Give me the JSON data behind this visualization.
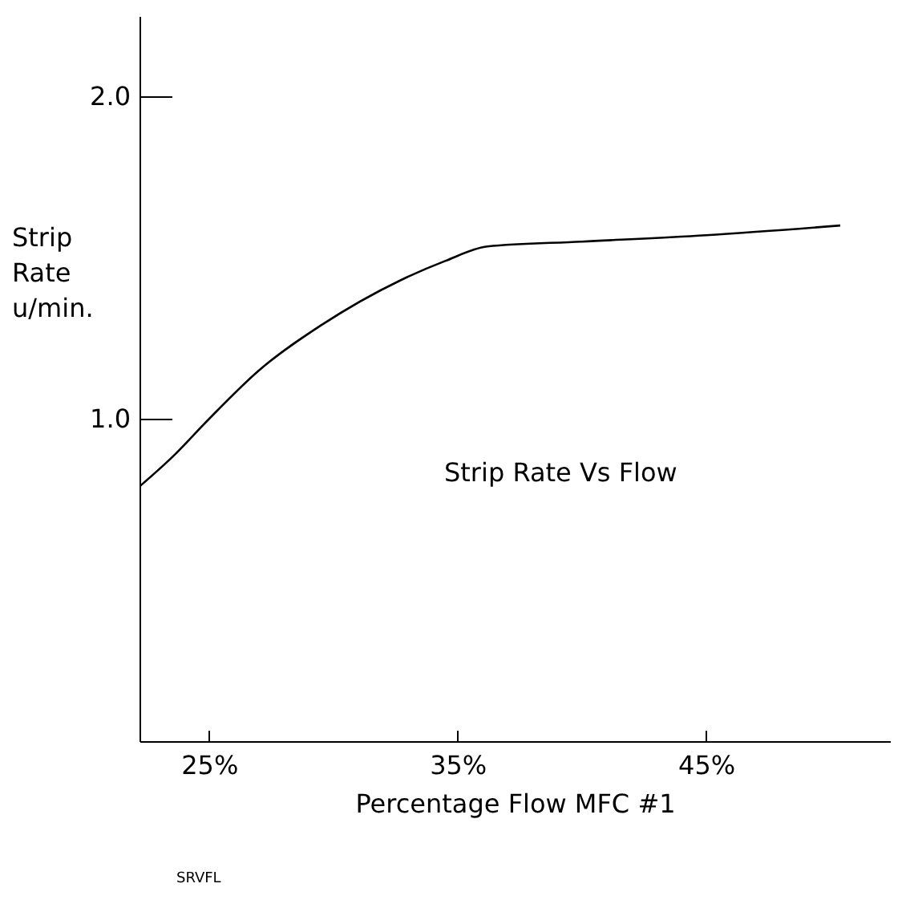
{
  "chart_data": {
    "type": "line",
    "title": "Strip Rate Vs Flow",
    "xlabel": "Percentage Flow MFC #1",
    "ylabel": "Strip Rate u/min.",
    "annotations": [
      "SRVFL"
    ],
    "x": [
      22.2,
      23.5,
      25,
      27,
      29.5,
      32.7,
      34.5,
      36.2,
      40,
      45,
      50.4
    ],
    "series": [
      {
        "color": "#000000",
        "values": [
          0.79,
          0.88,
          1.0,
          1.15,
          1.29,
          1.43,
          1.49,
          1.535,
          1.55,
          1.57,
          1.6
        ]
      }
    ],
    "xlim": [
      22.2,
      52.4
    ],
    "ylim": [
      0,
      2.25
    ],
    "xticks": [
      {
        "value": 25,
        "label": "25%"
      },
      {
        "value": 35,
        "label": "35%"
      },
      {
        "value": 45,
        "label": "45%"
      }
    ],
    "yticks": [
      {
        "value": 1,
        "label": "1.0"
      },
      {
        "value": 2,
        "label": "2.0"
      }
    ],
    "grid": false,
    "marker": "none",
    "line_style": "solid"
  }
}
